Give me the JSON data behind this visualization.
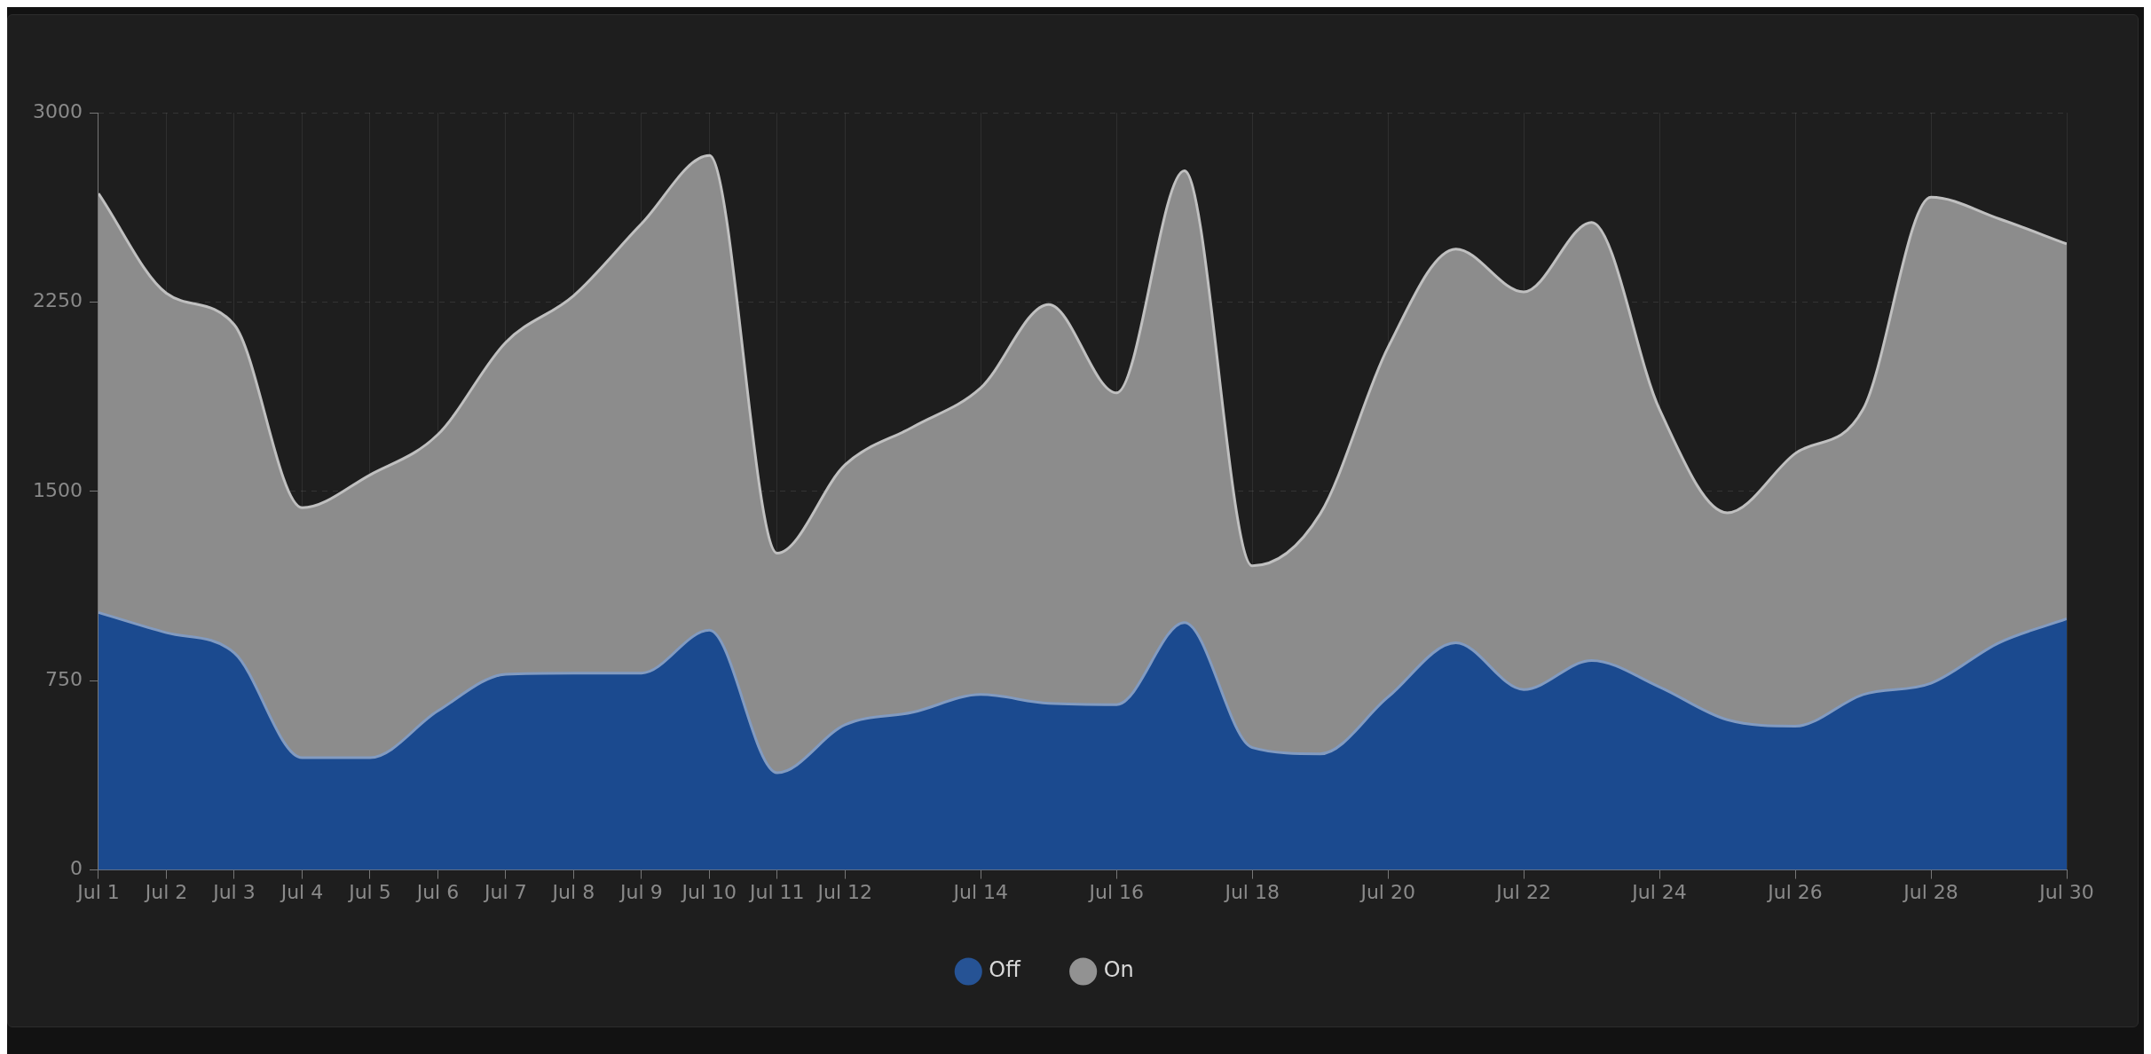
{
  "chart_data": {
    "type": "area",
    "x": [
      "--07-01",
      "--07-02",
      "--07-03",
      "--07-04",
      "--07-05",
      "--07-06",
      "--07-07",
      "--07-08",
      "--07-09",
      "--07-10",
      "--07-11",
      "--07-12",
      "--07-13",
      "--07-14",
      "--07-15",
      "--07-16",
      "--07-17",
      "--07-18",
      "--07-19",
      "--07-20",
      "--07-21",
      "--07-22",
      "--07-23",
      "--07-24",
      "--07-25",
      "--07-26",
      "--07-27",
      "--07-28",
      "--07-29",
      "--07-30"
    ],
    "series": [
      {
        "name": "Off",
        "color": "#1b4a8f",
        "values": [
          1020,
          940,
          860,
          445,
          445,
          630,
          775,
          780,
          780,
          950,
          385,
          575,
          625,
          695,
          660,
          655,
          980,
          485,
          460,
          685,
          900,
          715,
          830,
          725,
          595,
          570,
          695,
          740,
          900,
          995
        ]
      },
      {
        "name": "On",
        "color": "#8c8c8c",
        "values": [
          2680,
          2285,
          2160,
          1435,
          1565,
          1725,
          2090,
          2275,
          2560,
          2830,
          1255,
          1605,
          1755,
          1910,
          2240,
          1890,
          2770,
          1205,
          1410,
          2070,
          2460,
          2290,
          2565,
          1825,
          1415,
          1650,
          1825,
          2665,
          2580,
          2480
        ]
      }
    ],
    "xlim": [
      "--07-01",
      "--07-30"
    ],
    "xticks": [
      {
        "value": "--07-01",
        "label": "Jul 1"
      },
      {
        "value": "--07-02",
        "label": "Jul 2"
      },
      {
        "value": "--07-03",
        "label": "Jul 3"
      },
      {
        "value": "--07-04",
        "label": "Jul 4"
      },
      {
        "value": "--07-05",
        "label": "Jul 5"
      },
      {
        "value": "--07-06",
        "label": "Jul 6"
      },
      {
        "value": "--07-07",
        "label": "Jul 7"
      },
      {
        "value": "--07-08",
        "label": "Jul 8"
      },
      {
        "value": "--07-09",
        "label": "Jul 9"
      },
      {
        "value": "--07-10",
        "label": "Jul 10"
      },
      {
        "value": "--07-11",
        "label": "Jul 11"
      },
      {
        "value": "--07-12",
        "label": "Jul 12"
      },
      {
        "value": "--07-14",
        "label": "Jul 14"
      },
      {
        "value": "--07-16",
        "label": "Jul 16"
      },
      {
        "value": "--07-18",
        "label": "Jul 18"
      },
      {
        "value": "--07-20",
        "label": "Jul 20"
      },
      {
        "value": "--07-22",
        "label": "Jul 22"
      },
      {
        "value": "--07-24",
        "label": "Jul 24"
      },
      {
        "value": "--07-26",
        "label": "Jul 26"
      },
      {
        "value": "--07-28",
        "label": "Jul 28"
      },
      {
        "value": "--07-30",
        "label": "Jul 30"
      }
    ],
    "ylim": [
      0,
      3000
    ],
    "yticks": [
      0,
      750,
      1500,
      2250,
      3000
    ],
    "grid": true,
    "legend": "bottom",
    "marker": "none",
    "line_style": "solid"
  }
}
